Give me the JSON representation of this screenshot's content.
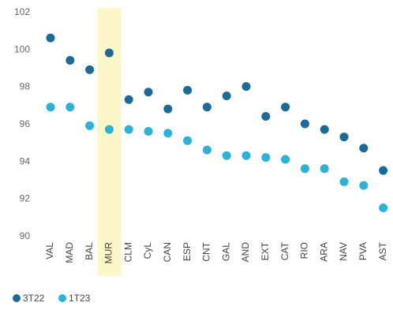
{
  "chart_data": {
    "type": "scatter",
    "title": "",
    "xlabel": "",
    "ylabel": "",
    "categories": [
      "VAL",
      "MAD",
      "BAL",
      "MUR",
      "CLM",
      "CyL",
      "CAN",
      "ESP",
      "CNT",
      "GAL",
      "AND",
      "EXT",
      "CAT",
      "RIO",
      "ARA",
      "NAV",
      "PVA",
      "AST"
    ],
    "ylim": [
      90,
      102
    ],
    "yticks": [
      90,
      92,
      94,
      96,
      98,
      100,
      102
    ],
    "grid": false,
    "legend_position": "bottom-left",
    "highlight_category": "MUR",
    "series": [
      {
        "name": "3T22",
        "color": "#1a6a9a",
        "values": [
          100.6,
          99.4,
          98.9,
          99.8,
          97.3,
          97.7,
          96.8,
          97.8,
          96.9,
          97.5,
          98.0,
          96.4,
          96.9,
          96.0,
          95.7,
          95.3,
          94.7,
          93.5
        ]
      },
      {
        "name": "1T23",
        "color": "#2ab3d6",
        "values": [
          96.9,
          96.9,
          95.9,
          95.7,
          95.7,
          95.6,
          95.5,
          95.1,
          94.6,
          94.3,
          94.3,
          94.2,
          94.1,
          93.6,
          93.6,
          92.9,
          92.7,
          91.5
        ]
      }
    ]
  },
  "legend": {
    "s1_label": "3T22",
    "s2_label": "1T23"
  }
}
